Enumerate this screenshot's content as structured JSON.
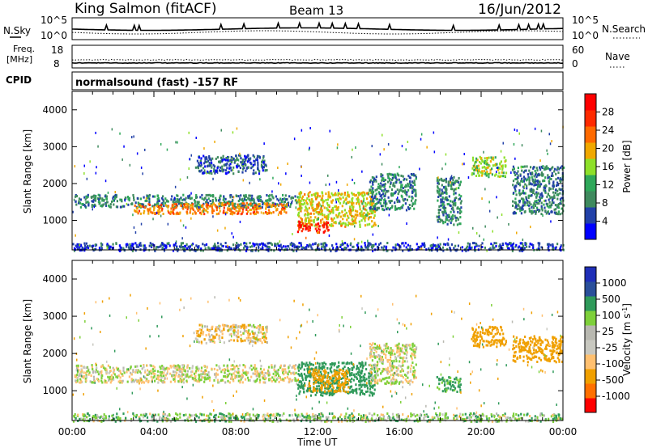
{
  "header": {
    "station": "King Salmon (fitACF)",
    "beam": "Beam 13",
    "date": "16/Jun/2012"
  },
  "noise_panel": {
    "left_label": "N.Sky",
    "right_label": "N.Search",
    "left_ticks": [
      "10^5",
      "10^0"
    ],
    "right_ticks": [
      "10^5",
      "10^0"
    ]
  },
  "freq_panel": {
    "label_line1": "Freq.",
    "label_line2": "[MHz]",
    "left_ticks": [
      "18",
      "8"
    ],
    "right_ticks": [
      "60",
      "0"
    ],
    "right_label": "Nave",
    "freq_value_mhz": 10.2
  },
  "cpid": {
    "label": "CPID",
    "value": "normalsound (fast) -157 RF"
  },
  "colors": {
    "power": [
      "#0000ff",
      "#2241a8",
      "#3f8a5e",
      "#2fa85a",
      "#8ee02a",
      "#f0a800",
      "#ff6a00",
      "#ff2a00",
      "#ff0000"
    ],
    "velocity": [
      "#ff0000",
      "#ff7000",
      "#f0a000",
      "#ffc070",
      "#c8c8c0",
      "#b8b8b0",
      "#7ed03a",
      "#2f9a5a",
      "#2a4f9a",
      "#1f2fb8"
    ]
  },
  "chart_data": [
    {
      "type": "heatmap",
      "name": "power",
      "ylabel": "Slant Range [km]",
      "xlabel": "",
      "yticks": [
        1000,
        2000,
        3000,
        4000
      ],
      "ylim": [
        200,
        4500
      ],
      "xlim_hours": [
        0,
        24
      ],
      "colorbar": {
        "label": "Power [dB]",
        "ticks": [
          "4",
          "8",
          "12",
          "16",
          "20",
          "24",
          "28"
        ],
        "range": [
          0,
          32
        ]
      },
      "regions": [
        {
          "t": [
            0.1,
            11.0
          ],
          "r": [
            1380,
            1720
          ],
          "value": 9
        },
        {
          "t": [
            3.0,
            10.5
          ],
          "r": [
            1200,
            1500
          ],
          "value": 22
        },
        {
          "t": [
            6.0,
            9.5
          ],
          "r": [
            2300,
            2800
          ],
          "value": 6
        },
        {
          "t": [
            11.0,
            14.8
          ],
          "r": [
            850,
            1800
          ],
          "value": 18
        },
        {
          "t": [
            11.0,
            12.5
          ],
          "r": [
            700,
            1000
          ],
          "value": 28
        },
        {
          "t": [
            14.5,
            16.8
          ],
          "r": [
            1300,
            2300
          ],
          "value": 9
        },
        {
          "t": [
            17.8,
            19.0
          ],
          "r": [
            900,
            2200
          ],
          "value": 9
        },
        {
          "t": [
            19.5,
            21.2
          ],
          "r": [
            2200,
            2750
          ],
          "value": 16
        },
        {
          "t": [
            21.5,
            24.0
          ],
          "r": [
            1200,
            2500
          ],
          "value": 8
        },
        {
          "t": [
            0.0,
            24.0
          ],
          "r": [
            200,
            420
          ],
          "value": 5
        }
      ]
    },
    {
      "type": "heatmap",
      "name": "velocity",
      "ylabel": "Slant Range [km]",
      "xlabel": "Time UT",
      "yticks": [
        1000,
        2000,
        3000,
        4000
      ],
      "ylim": [
        200,
        4500
      ],
      "xlim_hours": [
        0,
        24
      ],
      "xticks": [
        "00:00",
        "04:00",
        "08:00",
        "12:00",
        "16:00",
        "20:00",
        "00:00"
      ],
      "colorbar": {
        "label": "Velocity [m s^-1]",
        "ticks": [
          "-1000",
          "-500",
          "-100",
          "-25",
          "25",
          "100",
          "500",
          "1000"
        ]
      },
      "regions": [
        {
          "t": [
            0.1,
            11.0
          ],
          "r": [
            1250,
            1720
          ],
          "value": 0
        },
        {
          "t": [
            6.0,
            9.5
          ],
          "r": [
            2300,
            2800
          ],
          "value": -50
        },
        {
          "t": [
            11.0,
            14.8
          ],
          "r": [
            900,
            1800
          ],
          "value": 300
        },
        {
          "t": [
            11.5,
            13.5
          ],
          "r": [
            1000,
            1600
          ],
          "value": -400
        },
        {
          "t": [
            14.5,
            16.8
          ],
          "r": [
            1200,
            2300
          ],
          "value": 0
        },
        {
          "t": [
            17.8,
            19.0
          ],
          "r": [
            1000,
            1400
          ],
          "value": 150
        },
        {
          "t": [
            19.5,
            21.2
          ],
          "r": [
            2200,
            2750
          ],
          "value": -300
        },
        {
          "t": [
            21.5,
            24.0
          ],
          "r": [
            1800,
            2500
          ],
          "value": -200
        },
        {
          "t": [
            0.0,
            24.0
          ],
          "r": [
            200,
            420
          ],
          "value": 60
        }
      ]
    }
  ]
}
